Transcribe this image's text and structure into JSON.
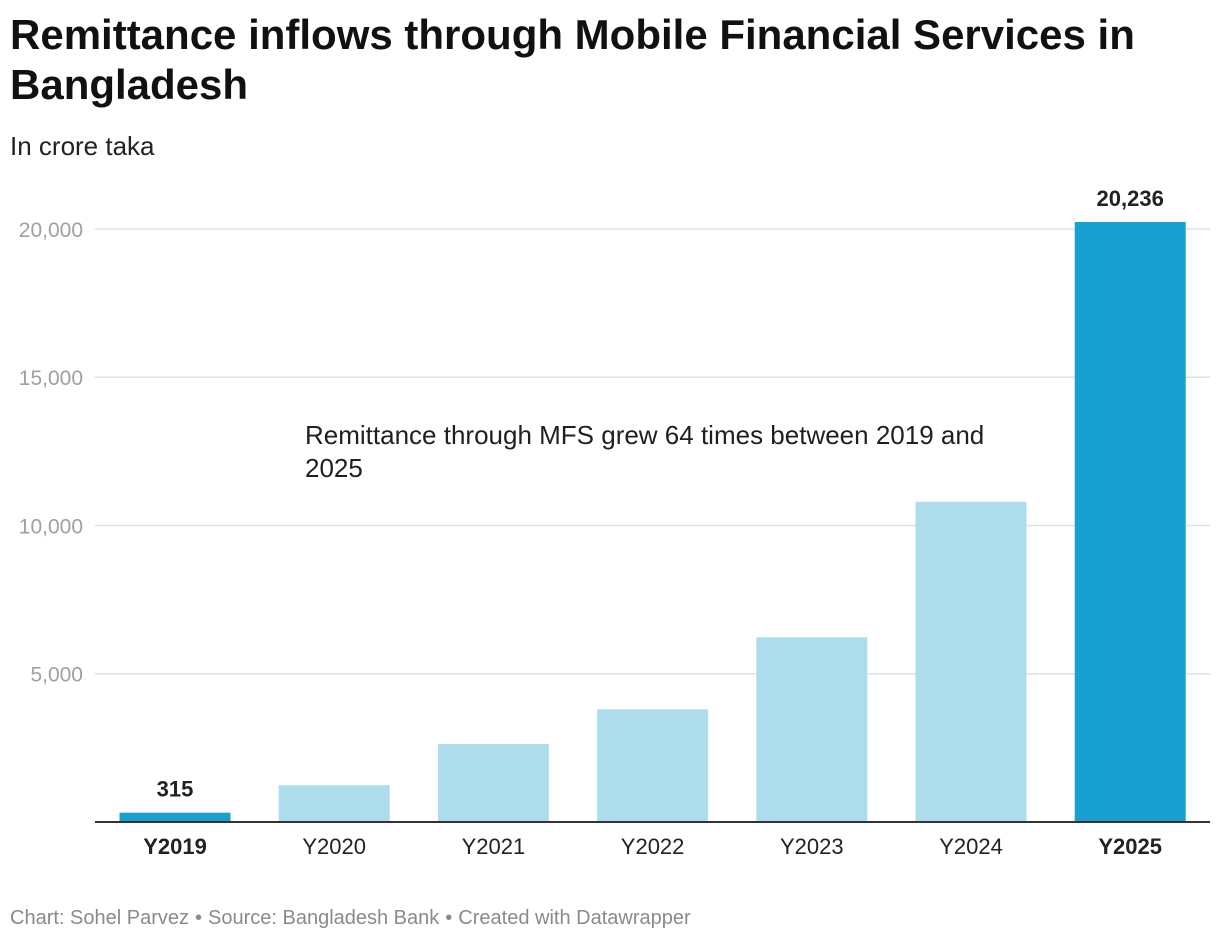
{
  "title": "Remittance inflows through Mobile Financial Services in Bangladesh",
  "subtitle": "In crore taka",
  "annotation": "Remittance through MFS grew 64 times between 2019 and 2025",
  "footer": {
    "chart": "Chart: Sohel Parvez",
    "source": "Source: Bangladesh Bank",
    "created": "Created with Datawrapper"
  },
  "colors": {
    "highlight": "#1aa0d0",
    "base": "#addcec",
    "grid": "#e0e0e0",
    "axis_text": "#a0a0a0",
    "baseline": "#333333"
  },
  "chart_data": {
    "type": "bar",
    "categories": [
      "Y2019",
      "Y2020",
      "Y2021",
      "Y2022",
      "Y2023",
      "Y2024",
      "Y2025"
    ],
    "values": [
      315,
      1240,
      2630,
      3800,
      6230,
      10800,
      20236
    ],
    "highlighted": [
      true,
      false,
      false,
      false,
      false,
      false,
      true
    ],
    "value_labels": [
      "315",
      "",
      "",
      "",
      "",
      "",
      "20,236"
    ],
    "yticks": [
      5000,
      10000,
      15000,
      20000
    ],
    "ytick_labels": [
      "5,000",
      "10,000",
      "15,000",
      "20,000"
    ],
    "ylim": [
      0,
      20236
    ],
    "title": "Remittance inflows through Mobile Financial Services in Bangladesh",
    "xlabel": "",
    "ylabel": "In crore taka",
    "grid": true
  }
}
